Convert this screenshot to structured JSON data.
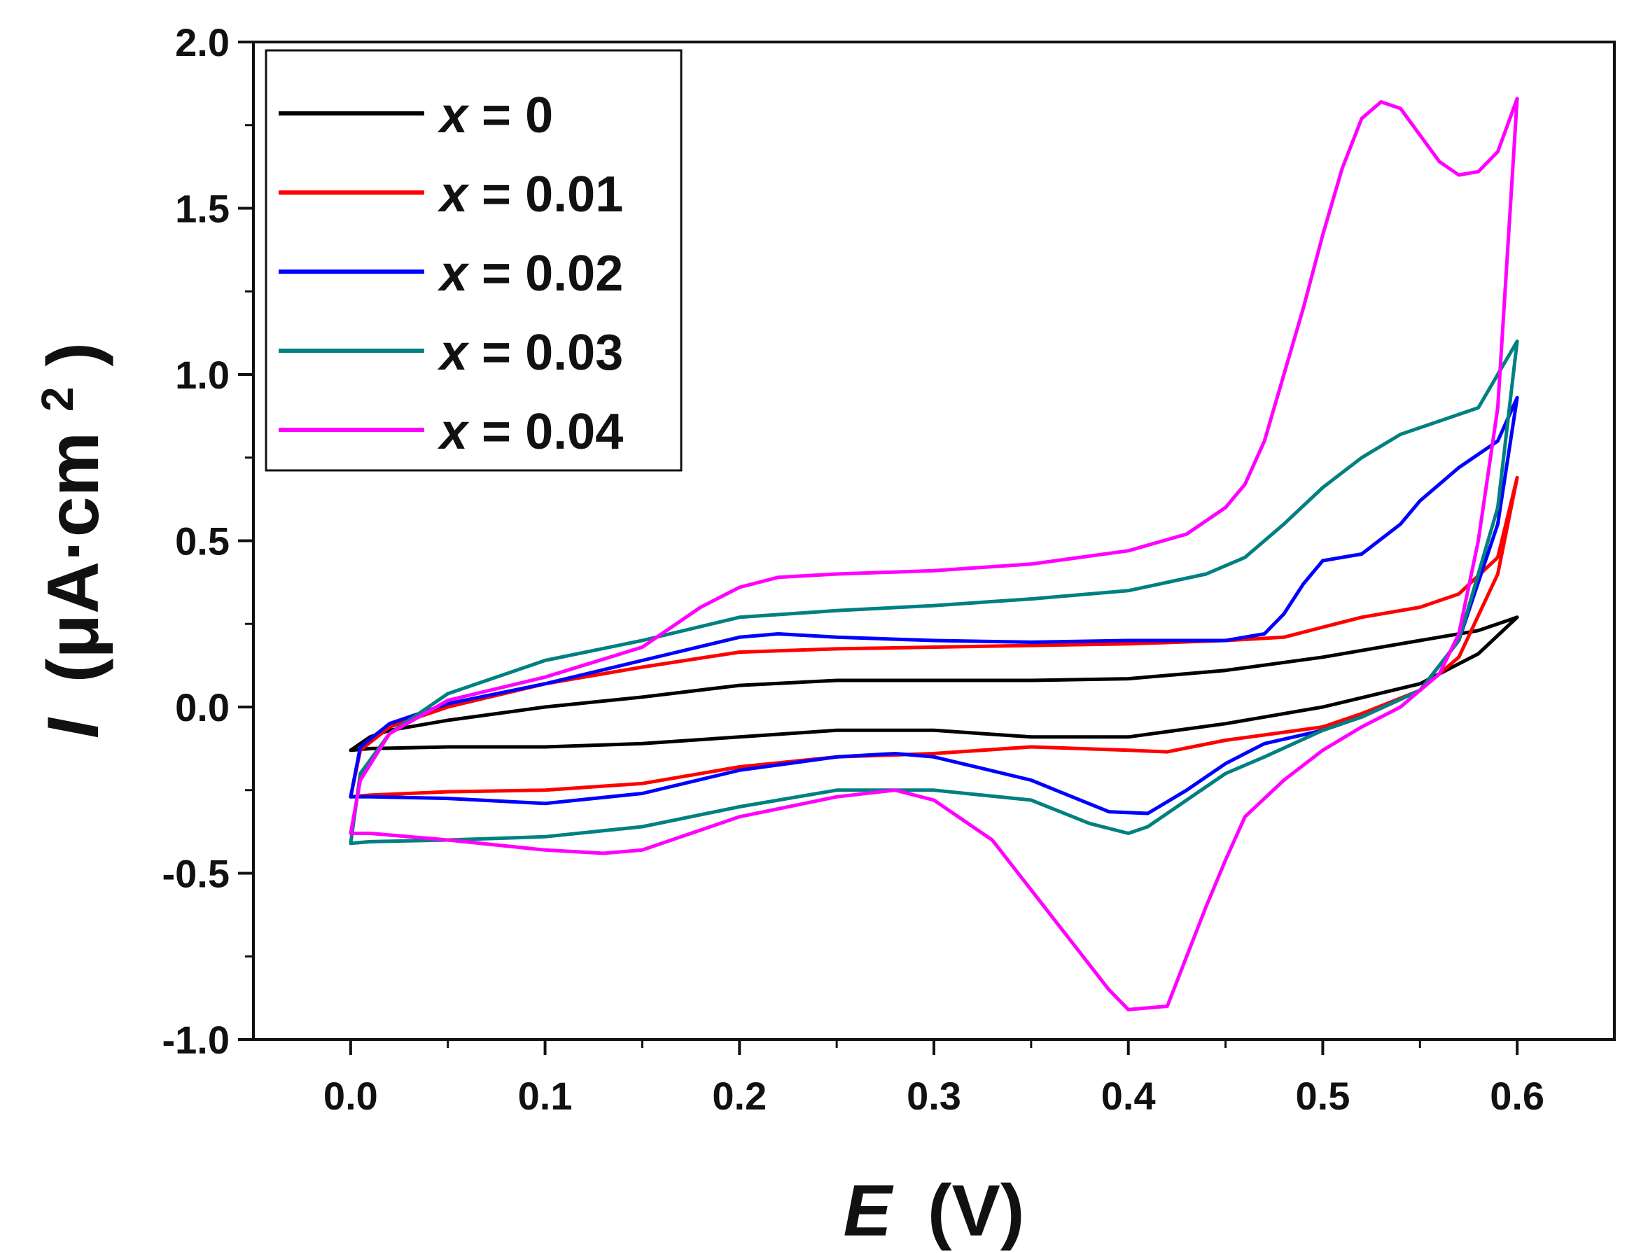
{
  "chart_data": {
    "type": "line",
    "title": "",
    "xlabel_var": "E",
    "xlabel_unit": "(V)",
    "ylabel_var": "I",
    "ylabel_unit": "(μA·cm",
    "ylabel_sup": "2",
    "ylabel_close": ")",
    "xlim": [
      -0.05,
      0.65
    ],
    "ylim": [
      -1.0,
      2.0
    ],
    "x_ticks": [
      0.0,
      0.1,
      0.2,
      0.3,
      0.4,
      0.5,
      0.6
    ],
    "x_tick_labels": [
      "0.0",
      "0.1",
      "0.2",
      "0.3",
      "0.4",
      "0.5",
      "0.6"
    ],
    "y_ticks": [
      -1.0,
      -0.5,
      0.0,
      0.5,
      1.0,
      1.5,
      2.0
    ],
    "y_tick_labels": [
      "-1.0",
      "-0.5",
      "0.0",
      "0.5",
      "1.0",
      "1.5",
      "2.0"
    ],
    "legend_position": "top-left",
    "series": [
      {
        "name": "x = 0",
        "legend_var": "x",
        "legend_rest": " = 0",
        "color": "#000000",
        "forward": [
          [
            0.0,
            -0.13
          ],
          [
            0.01,
            -0.09
          ],
          [
            0.02,
            -0.07
          ],
          [
            0.05,
            -0.04
          ],
          [
            0.1,
            0.0
          ],
          [
            0.15,
            0.03
          ],
          [
            0.2,
            0.065
          ],
          [
            0.25,
            0.08
          ],
          [
            0.3,
            0.08
          ],
          [
            0.35,
            0.08
          ],
          [
            0.4,
            0.085
          ],
          [
            0.45,
            0.11
          ],
          [
            0.5,
            0.15
          ],
          [
            0.55,
            0.2
          ],
          [
            0.58,
            0.23
          ],
          [
            0.6,
            0.27
          ]
        ],
        "reverse": [
          [
            0.6,
            0.27
          ],
          [
            0.58,
            0.16
          ],
          [
            0.55,
            0.07
          ],
          [
            0.5,
            0.0
          ],
          [
            0.45,
            -0.05
          ],
          [
            0.4,
            -0.09
          ],
          [
            0.35,
            -0.09
          ],
          [
            0.3,
            -0.07
          ],
          [
            0.25,
            -0.07
          ],
          [
            0.2,
            -0.09
          ],
          [
            0.15,
            -0.11
          ],
          [
            0.1,
            -0.12
          ],
          [
            0.05,
            -0.12
          ],
          [
            0.01,
            -0.125
          ],
          [
            0.0,
            -0.13
          ]
        ]
      },
      {
        "name": "x = 0.01",
        "legend_var": "x",
        "legend_rest": " = 0.01",
        "color": "#ff0000",
        "forward": [
          [
            0.0,
            -0.27
          ],
          [
            0.005,
            -0.13
          ],
          [
            0.02,
            -0.06
          ],
          [
            0.05,
            0.0
          ],
          [
            0.1,
            0.07
          ],
          [
            0.15,
            0.12
          ],
          [
            0.2,
            0.165
          ],
          [
            0.25,
            0.175
          ],
          [
            0.3,
            0.18
          ],
          [
            0.35,
            0.185
          ],
          [
            0.4,
            0.19
          ],
          [
            0.45,
            0.2
          ],
          [
            0.48,
            0.21
          ],
          [
            0.5,
            0.24
          ],
          [
            0.52,
            0.27
          ],
          [
            0.55,
            0.3
          ],
          [
            0.57,
            0.34
          ],
          [
            0.59,
            0.45
          ],
          [
            0.6,
            0.69
          ]
        ],
        "reverse": [
          [
            0.6,
            0.69
          ],
          [
            0.59,
            0.4
          ],
          [
            0.57,
            0.15
          ],
          [
            0.55,
            0.05
          ],
          [
            0.52,
            -0.02
          ],
          [
            0.5,
            -0.06
          ],
          [
            0.45,
            -0.1
          ],
          [
            0.42,
            -0.135
          ],
          [
            0.4,
            -0.13
          ],
          [
            0.35,
            -0.12
          ],
          [
            0.3,
            -0.14
          ],
          [
            0.25,
            -0.15
          ],
          [
            0.2,
            -0.18
          ],
          [
            0.15,
            -0.23
          ],
          [
            0.1,
            -0.25
          ],
          [
            0.05,
            -0.255
          ],
          [
            0.01,
            -0.265
          ],
          [
            0.0,
            -0.27
          ]
        ]
      },
      {
        "name": "x = 0.02",
        "legend_var": "x",
        "legend_rest": " = 0.02",
        "color": "#0000ff",
        "forward": [
          [
            0.0,
            -0.27
          ],
          [
            0.005,
            -0.12
          ],
          [
            0.02,
            -0.05
          ],
          [
            0.05,
            0.01
          ],
          [
            0.1,
            0.07
          ],
          [
            0.15,
            0.14
          ],
          [
            0.2,
            0.21
          ],
          [
            0.22,
            0.22
          ],
          [
            0.25,
            0.21
          ],
          [
            0.3,
            0.2
          ],
          [
            0.35,
            0.195
          ],
          [
            0.4,
            0.2
          ],
          [
            0.45,
            0.2
          ],
          [
            0.47,
            0.22
          ],
          [
            0.48,
            0.28
          ],
          [
            0.49,
            0.37
          ],
          [
            0.5,
            0.44
          ],
          [
            0.52,
            0.46
          ],
          [
            0.54,
            0.55
          ],
          [
            0.55,
            0.62
          ],
          [
            0.57,
            0.72
          ],
          [
            0.59,
            0.8
          ],
          [
            0.6,
            0.93
          ]
        ],
        "reverse": [
          [
            0.6,
            0.93
          ],
          [
            0.59,
            0.55
          ],
          [
            0.57,
            0.2
          ],
          [
            0.55,
            0.05
          ],
          [
            0.52,
            -0.03
          ],
          [
            0.5,
            -0.07
          ],
          [
            0.47,
            -0.11
          ],
          [
            0.45,
            -0.17
          ],
          [
            0.43,
            -0.25
          ],
          [
            0.41,
            -0.32
          ],
          [
            0.39,
            -0.315
          ],
          [
            0.35,
            -0.22
          ],
          [
            0.3,
            -0.15
          ],
          [
            0.28,
            -0.14
          ],
          [
            0.25,
            -0.15
          ],
          [
            0.2,
            -0.19
          ],
          [
            0.15,
            -0.26
          ],
          [
            0.1,
            -0.29
          ],
          [
            0.05,
            -0.275
          ],
          [
            0.01,
            -0.27
          ],
          [
            0.0,
            -0.27
          ]
        ]
      },
      {
        "name": "x = 0.03",
        "legend_var": "x",
        "legend_rest": " = 0.03",
        "color": "#008080",
        "forward": [
          [
            0.0,
            -0.41
          ],
          [
            0.005,
            -0.2
          ],
          [
            0.02,
            -0.08
          ],
          [
            0.05,
            0.04
          ],
          [
            0.1,
            0.14
          ],
          [
            0.15,
            0.2
          ],
          [
            0.2,
            0.27
          ],
          [
            0.25,
            0.29
          ],
          [
            0.3,
            0.305
          ],
          [
            0.35,
            0.325
          ],
          [
            0.4,
            0.35
          ],
          [
            0.44,
            0.4
          ],
          [
            0.46,
            0.45
          ],
          [
            0.48,
            0.55
          ],
          [
            0.5,
            0.66
          ],
          [
            0.52,
            0.75
          ],
          [
            0.54,
            0.82
          ],
          [
            0.56,
            0.86
          ],
          [
            0.58,
            0.9
          ],
          [
            0.6,
            1.1
          ]
        ],
        "reverse": [
          [
            0.6,
            1.1
          ],
          [
            0.59,
            0.6
          ],
          [
            0.57,
            0.2
          ],
          [
            0.55,
            0.05
          ],
          [
            0.52,
            -0.03
          ],
          [
            0.5,
            -0.07
          ],
          [
            0.47,
            -0.15
          ],
          [
            0.45,
            -0.2
          ],
          [
            0.43,
            -0.28
          ],
          [
            0.41,
            -0.36
          ],
          [
            0.4,
            -0.38
          ],
          [
            0.38,
            -0.35
          ],
          [
            0.35,
            -0.28
          ],
          [
            0.3,
            -0.25
          ],
          [
            0.25,
            -0.25
          ],
          [
            0.2,
            -0.3
          ],
          [
            0.15,
            -0.36
          ],
          [
            0.1,
            -0.39
          ],
          [
            0.05,
            -0.4
          ],
          [
            0.01,
            -0.405
          ],
          [
            0.0,
            -0.41
          ]
        ]
      },
      {
        "name": "x = 0.04",
        "legend_var": "x",
        "legend_rest": " = 0.04",
        "color": "#ff00ff",
        "forward": [
          [
            0.0,
            -0.38
          ],
          [
            0.005,
            -0.22
          ],
          [
            0.02,
            -0.08
          ],
          [
            0.05,
            0.02
          ],
          [
            0.1,
            0.09
          ],
          [
            0.15,
            0.18
          ],
          [
            0.18,
            0.3
          ],
          [
            0.2,
            0.36
          ],
          [
            0.22,
            0.39
          ],
          [
            0.25,
            0.4
          ],
          [
            0.3,
            0.41
          ],
          [
            0.35,
            0.43
          ],
          [
            0.4,
            0.47
          ],
          [
            0.43,
            0.52
          ],
          [
            0.45,
            0.6
          ],
          [
            0.46,
            0.67
          ],
          [
            0.47,
            0.8
          ],
          [
            0.48,
            1.0
          ],
          [
            0.49,
            1.2
          ],
          [
            0.5,
            1.42
          ],
          [
            0.51,
            1.62
          ],
          [
            0.52,
            1.77
          ],
          [
            0.53,
            1.82
          ],
          [
            0.54,
            1.8
          ],
          [
            0.55,
            1.72
          ],
          [
            0.56,
            1.64
          ],
          [
            0.57,
            1.6
          ],
          [
            0.58,
            1.61
          ],
          [
            0.59,
            1.67
          ],
          [
            0.6,
            1.83
          ]
        ],
        "reverse": [
          [
            0.6,
            1.83
          ],
          [
            0.59,
            0.9
          ],
          [
            0.58,
            0.5
          ],
          [
            0.57,
            0.22
          ],
          [
            0.56,
            0.1
          ],
          [
            0.54,
            0.0
          ],
          [
            0.52,
            -0.06
          ],
          [
            0.5,
            -0.13
          ],
          [
            0.48,
            -0.22
          ],
          [
            0.46,
            -0.33
          ],
          [
            0.45,
            -0.46
          ],
          [
            0.44,
            -0.6
          ],
          [
            0.43,
            -0.75
          ],
          [
            0.42,
            -0.9
          ],
          [
            0.41,
            -0.905
          ],
          [
            0.4,
            -0.91
          ],
          [
            0.39,
            -0.85
          ],
          [
            0.37,
            -0.7
          ],
          [
            0.35,
            -0.55
          ],
          [
            0.33,
            -0.4
          ],
          [
            0.3,
            -0.28
          ],
          [
            0.28,
            -0.25
          ],
          [
            0.25,
            -0.27
          ],
          [
            0.2,
            -0.33
          ],
          [
            0.15,
            -0.43
          ],
          [
            0.13,
            -0.44
          ],
          [
            0.1,
            -0.43
          ],
          [
            0.05,
            -0.4
          ],
          [
            0.01,
            -0.38
          ],
          [
            0.0,
            -0.38
          ]
        ]
      }
    ]
  }
}
